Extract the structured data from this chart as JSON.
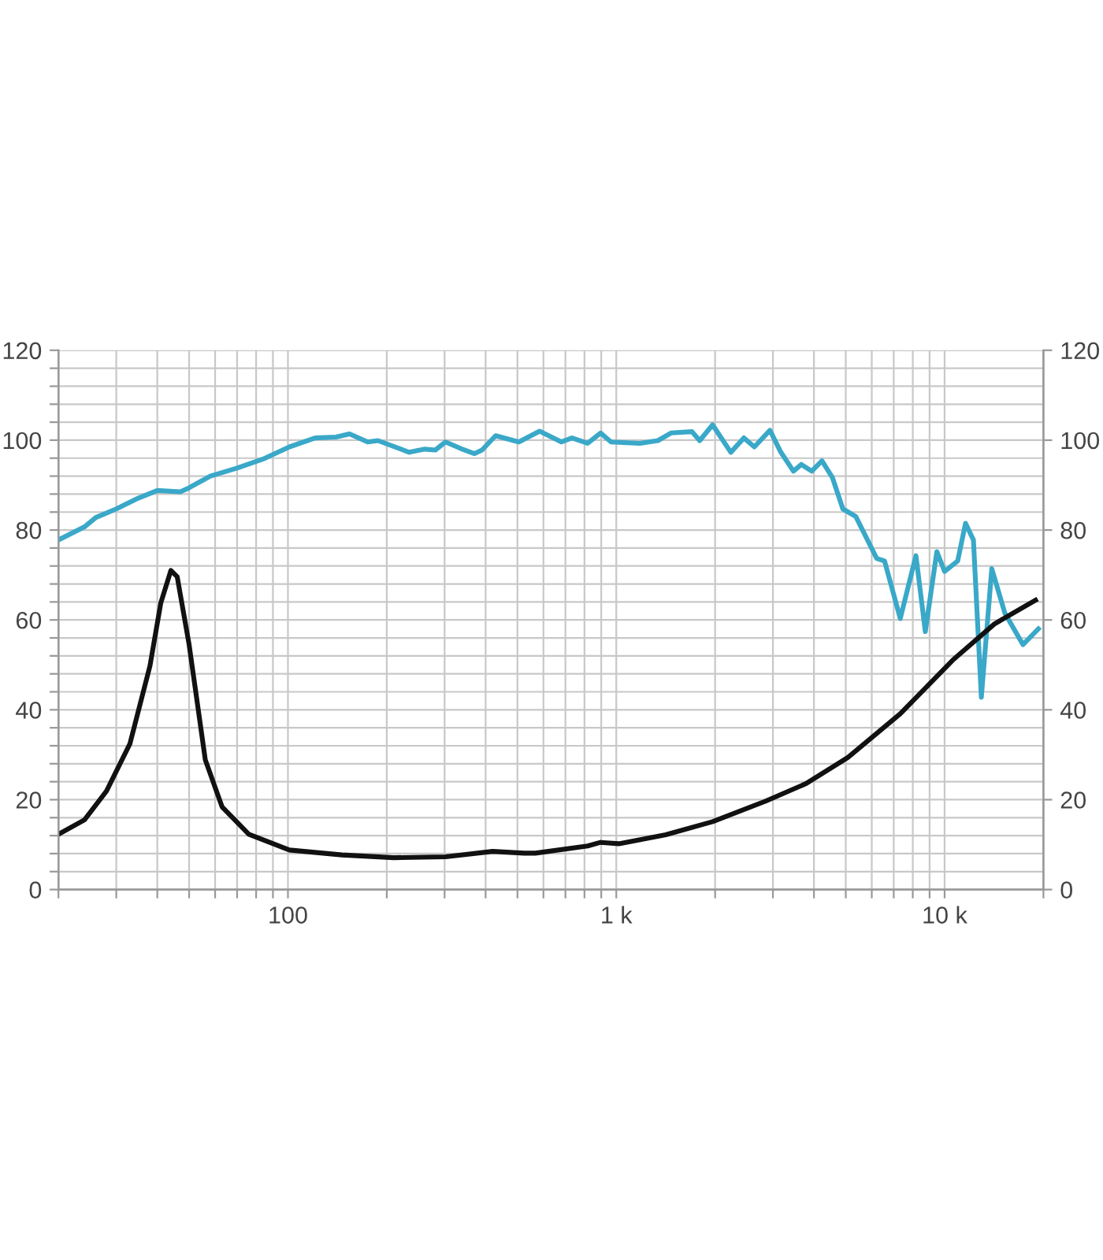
{
  "chart_data": {
    "type": "line",
    "log": "x",
    "grid": true,
    "legend": false,
    "marker": "none",
    "line_style": "solid",
    "xlim": [
      20,
      20000
    ],
    "xticks": [
      {
        "value": 20,
        "label": null
      },
      {
        "value": 30,
        "label": null
      },
      {
        "value": 40,
        "label": null
      },
      {
        "value": 50,
        "label": null
      },
      {
        "value": 60,
        "label": null
      },
      {
        "value": 70,
        "label": null
      },
      {
        "value": 80,
        "label": null
      },
      {
        "value": 90,
        "label": null
      },
      100,
      {
        "value": 200,
        "label": null
      },
      {
        "value": 300,
        "label": null
      },
      {
        "value": 400,
        "label": null
      },
      {
        "value": 500,
        "label": null
      },
      {
        "value": 600,
        "label": null
      },
      {
        "value": 700,
        "label": null
      },
      {
        "value": 800,
        "label": null
      },
      {
        "value": 900,
        "label": null
      },
      {
        "value": 1000,
        "label": "1 k"
      },
      {
        "value": 2000,
        "label": null
      },
      {
        "value": 3000,
        "label": null
      },
      {
        "value": 4000,
        "label": null
      },
      {
        "value": 5000,
        "label": null
      },
      {
        "value": 6000,
        "label": null
      },
      {
        "value": 7000,
        "label": null
      },
      {
        "value": 8000,
        "label": null
      },
      {
        "value": 9000,
        "label": null
      },
      {
        "value": 10000,
        "label": "10 k"
      },
      {
        "value": 20000,
        "label": null
      }
    ],
    "ylim": [
      0,
      120
    ],
    "yticks": [
      0,
      {
        "value": 4,
        "label": null
      },
      {
        "value": 8,
        "label": null
      },
      {
        "value": 12,
        "label": null
      },
      {
        "value": 16,
        "label": null
      },
      20,
      {
        "value": 24,
        "label": null
      },
      {
        "value": 28,
        "label": null
      },
      {
        "value": 32,
        "label": null
      },
      {
        "value": 36,
        "label": null
      },
      40,
      {
        "value": 44,
        "label": null
      },
      {
        "value": 48,
        "label": null
      },
      {
        "value": 52,
        "label": null
      },
      {
        "value": 56,
        "label": null
      },
      60,
      {
        "value": 64,
        "label": null
      },
      {
        "value": 68,
        "label": null
      },
      {
        "value": 72,
        "label": null
      },
      {
        "value": 76,
        "label": null
      },
      80,
      {
        "value": 84,
        "label": null
      },
      {
        "value": 88,
        "label": null
      },
      {
        "value": 92,
        "label": null
      },
      {
        "value": 96,
        "label": null
      },
      100,
      {
        "value": 104,
        "label": null
      },
      {
        "value": 108,
        "label": null
      },
      {
        "value": 112,
        "label": null
      },
      {
        "value": 116,
        "label": null
      },
      120
    ],
    "y2lim": [
      0,
      120
    ],
    "y2ticks": [
      0,
      20,
      40,
      60,
      80,
      100,
      120
    ],
    "series": [
      {
        "color": "#3aa8c8",
        "x": [
          20,
          24,
          26,
          30,
          35,
          40,
          47,
          50,
          58,
          70,
          84,
          101,
          121,
          140,
          154,
          175,
          188,
          234,
          261,
          281,
          302,
          337,
          370,
          390,
          429,
          505,
          584,
          681,
          733,
          818,
          896,
          964,
          1179,
          1339,
          1468,
          1699,
          1795,
          1965,
          2233,
          2447,
          2634,
          2938,
          3161,
          3464,
          3660,
          3937,
          4231,
          4552,
          4899,
          5364,
          6212,
          6565,
          7327,
          8180,
          8735,
          9470,
          10000,
          10960,
          11580,
          12240,
          12940,
          13920,
          15260,
          17320,
          19300
        ],
        "values": [
          77.8,
          80.7,
          82.8,
          84.7,
          87.1,
          88.8,
          88.5,
          89.4,
          92,
          93.8,
          95.8,
          98.5,
          100.5,
          100.7,
          101.4,
          99.6,
          99.9,
          97.3,
          98,
          97.8,
          99.6,
          98.1,
          97,
          97.8,
          101,
          99.6,
          102,
          99.6,
          100.5,
          99.3,
          101.6,
          99.6,
          99.3,
          99.9,
          101.6,
          101.9,
          99.9,
          103.4,
          97.3,
          100.5,
          98.5,
          102.2,
          97.5,
          93.1,
          94.6,
          93.1,
          95.4,
          91.7,
          84.7,
          83,
          73.7,
          73.1,
          60.3,
          74.3,
          57.4,
          75.2,
          70.8,
          73.1,
          81.5,
          77.8,
          42.8,
          71.4,
          61.5,
          54.5,
          58
        ]
      },
      {
        "color": "#111111",
        "x": [
          20,
          24,
          28,
          33,
          38,
          41,
          44,
          46,
          50,
          56,
          63,
          76,
          101,
          146,
          210,
          302,
          420,
          524,
          567,
          818,
          896,
          1018,
          1415,
          1965,
          2834,
          3789,
          5074,
          7327,
          10570,
          14180,
          18920
        ],
        "values": [
          12.3,
          15.5,
          21.9,
          32.4,
          49.8,
          63.8,
          71,
          69.6,
          54.5,
          28.9,
          18.4,
          12.3,
          8.8,
          7.7,
          7.1,
          7.3,
          8.5,
          8.1,
          8.1,
          9.7,
          10.5,
          10.2,
          12.2,
          15.1,
          19.6,
          23.6,
          29.4,
          39.1,
          51,
          59.1,
          64.4
        ]
      }
    ]
  }
}
